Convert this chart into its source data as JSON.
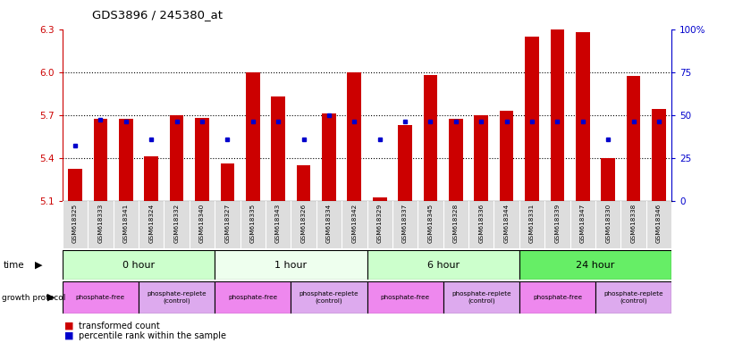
{
  "title": "GDS3896 / 245380_at",
  "samples": [
    "GSM618325",
    "GSM618333",
    "GSM618341",
    "GSM618324",
    "GSM618332",
    "GSM618340",
    "GSM618327",
    "GSM618335",
    "GSM618343",
    "GSM618326",
    "GSM618334",
    "GSM618342",
    "GSM618329",
    "GSM618337",
    "GSM618345",
    "GSM618328",
    "GSM618336",
    "GSM618344",
    "GSM618331",
    "GSM618339",
    "GSM618347",
    "GSM618330",
    "GSM618338",
    "GSM618346"
  ],
  "red_values": [
    5.32,
    5.67,
    5.67,
    5.41,
    5.7,
    5.68,
    5.36,
    6.0,
    5.83,
    5.35,
    5.71,
    6.0,
    5.12,
    5.63,
    5.98,
    5.67,
    5.7,
    5.73,
    6.25,
    6.3,
    6.28,
    5.4,
    5.97,
    5.74
  ],
  "blue_percentile": [
    32,
    47,
    46,
    36,
    46,
    46,
    36,
    46,
    46,
    36,
    50,
    46,
    36,
    46,
    46,
    46,
    46,
    46,
    46,
    46,
    46,
    36,
    46,
    46
  ],
  "ymin": 5.1,
  "ymax": 6.3,
  "yticks_left": [
    5.1,
    5.4,
    5.7,
    6.0,
    6.3
  ],
  "yticks_right": [
    0,
    25,
    50,
    75,
    100
  ],
  "yticks_right_labels": [
    "0",
    "25",
    "50",
    "75",
    "100%"
  ],
  "time_groups": [
    {
      "label": "0 hour",
      "start": 0,
      "end": 6,
      "color": "#ccffcc"
    },
    {
      "label": "1 hour",
      "start": 6,
      "end": 12,
      "color": "#eeffee"
    },
    {
      "label": "6 hour",
      "start": 12,
      "end": 18,
      "color": "#ccffcc"
    },
    {
      "label": "24 hour",
      "start": 18,
      "end": 24,
      "color": "#66ee66"
    }
  ],
  "protocol_groups": [
    {
      "label": "phosphate-free",
      "start": 0,
      "end": 3,
      "color": "#ee88ee"
    },
    {
      "label": "phosphate-replete\n(control)",
      "start": 3,
      "end": 6,
      "color": "#ddaaee"
    },
    {
      "label": "phosphate-free",
      "start": 6,
      "end": 9,
      "color": "#ee88ee"
    },
    {
      "label": "phosphate-replete\n(control)",
      "start": 9,
      "end": 12,
      "color": "#ddaaee"
    },
    {
      "label": "phosphate-free",
      "start": 12,
      "end": 15,
      "color": "#ee88ee"
    },
    {
      "label": "phosphate-replete\n(control)",
      "start": 15,
      "end": 18,
      "color": "#ddaaee"
    },
    {
      "label": "phosphate-free",
      "start": 18,
      "end": 21,
      "color": "#ee88ee"
    },
    {
      "label": "phosphate-replete\n(control)",
      "start": 21,
      "end": 24,
      "color": "#ddaaee"
    }
  ],
  "bar_color": "#cc0000",
  "dot_color": "#0000cc",
  "bg_color": "#ffffff",
  "left_axis_color": "#cc0000",
  "right_axis_color": "#0000cc",
  "title_color": "#000000",
  "n_samples": 24,
  "label_bg_color": "#dddddd"
}
